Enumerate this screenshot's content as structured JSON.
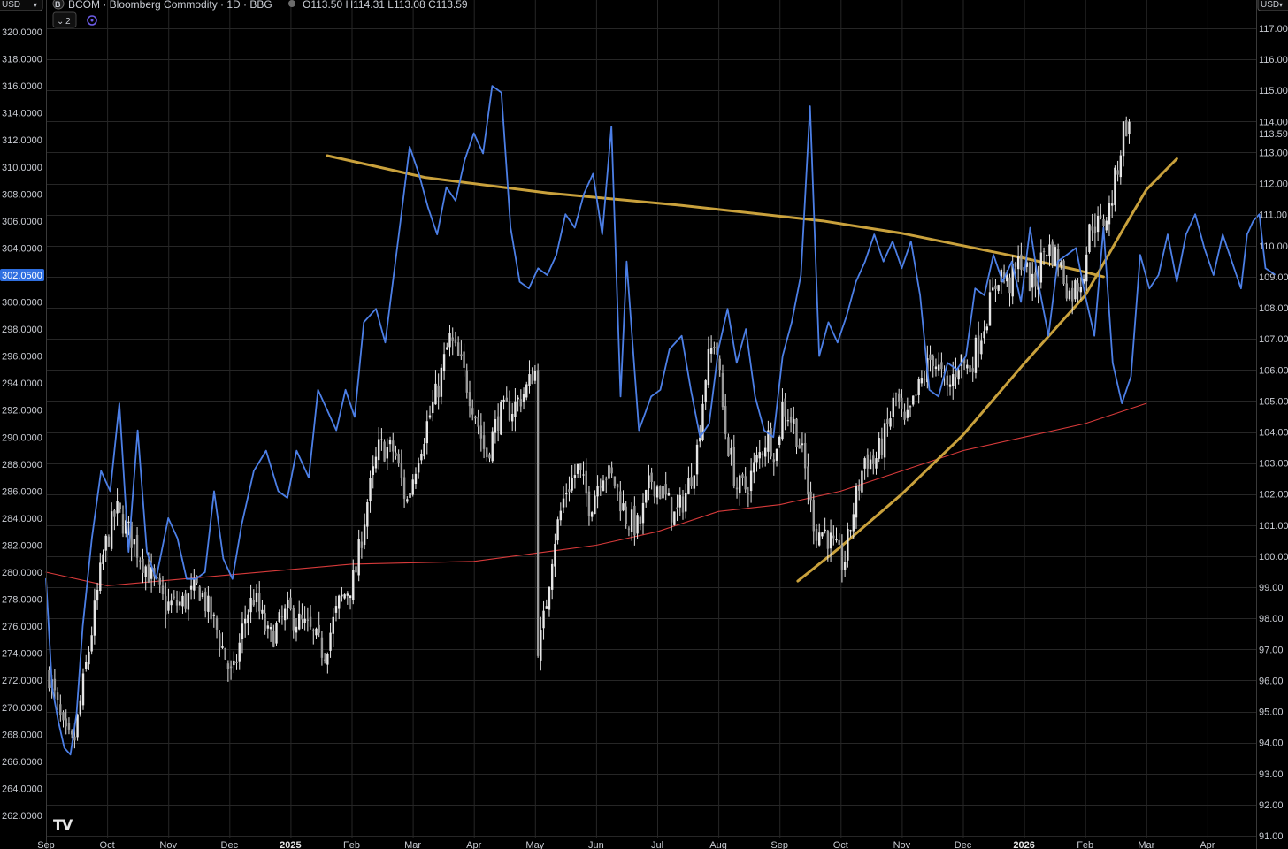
{
  "header": {
    "currency_left": "USD",
    "currency_right": "USD",
    "symbol_badge": "B",
    "title": "BCOM · Bloomberg Commodity · 1D · BBG",
    "ohlc": "O113.50  H114.31  L113.08  C113.59",
    "indicator_count": "2"
  },
  "logo": "TV",
  "colors": {
    "background": "#000000",
    "grid": "#262626",
    "candle": "#e6e6e6",
    "blue_line": "#4c7fe6",
    "red_ma": "#d63a3a",
    "gold_trend": "#c9a13c",
    "left_highlight": "#2f6fe0"
  },
  "chart_data": {
    "type": "line",
    "x_axis": {
      "labels": [
        "Sep",
        "Oct",
        "Nov",
        "Dec",
        "2025",
        "Feb",
        "Mar",
        "Apr",
        "May",
        "Jun",
        "Jul",
        "Aug",
        "Sep",
        "Oct",
        "Nov",
        "Dec",
        "2026",
        "Feb",
        "Mar",
        "Apr"
      ]
    },
    "left_axis": {
      "range": [
        261,
        321
      ],
      "ticks": [
        "320.0000",
        "318.0000",
        "316.0000",
        "314.0000",
        "312.0000",
        "310.0000",
        "308.0000",
        "306.0000",
        "304.0000",
        "302.0000",
        "300.0000",
        "298.0000",
        "296.0000",
        "294.0000",
        "292.0000",
        "290.0000",
        "288.0000",
        "286.0000",
        "284.0000",
        "282.0000",
        "280.0000",
        "278.0000",
        "276.0000",
        "274.0000",
        "272.0000",
        "270.0000",
        "268.0000",
        "266.0000",
        "264.0000",
        "262.0000"
      ],
      "current_value": "302.0500"
    },
    "right_axis": {
      "range": [
        91,
        117.5
      ],
      "ticks": [
        "117.00",
        "116.00",
        "115.00",
        "114.00",
        "113.00",
        "112.00",
        "111.00",
        "110.00",
        "109.00",
        "108.00",
        "107.00",
        "106.00",
        "105.00",
        "104.00",
        "103.00",
        "102.00",
        "101.00",
        "100.00",
        "99.00",
        "98.00",
        "97.00",
        "96.00",
        "95.00",
        "94.00",
        "93.00",
        "92.00",
        "91.00"
      ],
      "last_price": "113.59"
    },
    "series": [
      {
        "kind": "candles",
        "axis": "right",
        "close_path_t_v": [
          [
            0.05,
            96.2
          ],
          [
            0.3,
            94.2
          ],
          [
            0.45,
            93.9
          ],
          [
            0.7,
            97.0
          ],
          [
            0.95,
            100.2
          ],
          [
            1.15,
            101.5
          ],
          [
            1.4,
            100.6
          ],
          [
            1.65,
            99.6
          ],
          [
            1.95,
            98.4
          ],
          [
            2.25,
            98.5
          ],
          [
            2.5,
            99.0
          ],
          [
            2.8,
            97.6
          ],
          [
            3.05,
            96.0
          ],
          [
            3.25,
            98.0
          ],
          [
            3.4,
            98.7
          ],
          [
            3.65,
            97.3
          ],
          [
            3.95,
            98.2
          ],
          [
            4.3,
            97.6
          ],
          [
            4.55,
            96.9
          ],
          [
            4.8,
            98.5
          ],
          [
            5.05,
            99.3
          ],
          [
            5.25,
            101.7
          ],
          [
            5.45,
            103.5
          ],
          [
            5.7,
            103.4
          ],
          [
            5.9,
            101.7
          ],
          [
            6.1,
            103.4
          ],
          [
            6.4,
            105.3
          ],
          [
            6.6,
            107.0
          ],
          [
            6.8,
            106.1
          ],
          [
            7.0,
            104.8
          ],
          [
            7.2,
            103.2
          ],
          [
            7.4,
            104.5
          ],
          [
            7.65,
            104.8
          ],
          [
            7.9,
            105.5
          ],
          [
            8.0,
            106.2
          ],
          [
            8.05,
            96.8
          ],
          [
            8.15,
            98.0
          ],
          [
            8.3,
            100.4
          ],
          [
            8.5,
            102.1
          ],
          [
            8.7,
            102.8
          ],
          [
            8.9,
            101.6
          ],
          [
            9.1,
            102.8
          ],
          [
            9.3,
            102.4
          ],
          [
            9.5,
            101.2
          ],
          [
            9.7,
            100.9
          ],
          [
            9.9,
            102.5
          ],
          [
            10.1,
            102.0
          ],
          [
            10.3,
            101.2
          ],
          [
            10.5,
            102.2
          ],
          [
            10.65,
            103.4
          ],
          [
            10.8,
            106.0
          ],
          [
            10.95,
            107.1
          ],
          [
            11.1,
            104.2
          ],
          [
            11.3,
            102.2
          ],
          [
            11.45,
            102.2
          ],
          [
            11.6,
            102.9
          ],
          [
            11.8,
            103.9
          ],
          [
            11.95,
            103.3
          ],
          [
            12.05,
            104.9
          ],
          [
            12.25,
            104.2
          ],
          [
            12.4,
            103.0
          ],
          [
            12.5,
            101.7
          ],
          [
            12.6,
            100.8
          ],
          [
            12.75,
            100.8
          ],
          [
            12.9,
            100.2
          ],
          [
            13.05,
            99.7
          ],
          [
            13.2,
            101.4
          ],
          [
            13.4,
            103.2
          ],
          [
            13.55,
            103.0
          ],
          [
            13.75,
            104.0
          ],
          [
            13.9,
            105.2
          ],
          [
            14.05,
            104.1
          ],
          [
            14.3,
            105.5
          ],
          [
            14.5,
            106.5
          ],
          [
            14.6,
            106.0
          ],
          [
            14.75,
            105.3
          ],
          [
            14.95,
            106.4
          ],
          [
            15.1,
            106.0
          ],
          [
            15.3,
            107.2
          ],
          [
            15.5,
            108.5
          ],
          [
            15.6,
            109.2
          ],
          [
            15.75,
            108.7
          ],
          [
            15.95,
            109.6
          ],
          [
            16.15,
            108.6
          ],
          [
            16.35,
            110.0
          ],
          [
            16.55,
            109.6
          ],
          [
            16.75,
            108.4
          ],
          [
            16.95,
            109.0
          ],
          [
            17.1,
            110.8
          ],
          [
            17.25,
            110.6
          ],
          [
            17.4,
            111.2
          ],
          [
            17.5,
            112.2
          ],
          [
            17.65,
            114.0
          ],
          [
            17.75,
            113.59
          ]
        ]
      },
      {
        "kind": "line",
        "axis": "left",
        "color": "blue",
        "points_t_v": [
          [
            0.0,
            279.5
          ],
          [
            0.1,
            271.5
          ],
          [
            0.2,
            269.0
          ],
          [
            0.3,
            267.0
          ],
          [
            0.4,
            266.5
          ],
          [
            0.5,
            269.5
          ],
          [
            0.6,
            276.0
          ],
          [
            0.75,
            282.5
          ],
          [
            0.9,
            287.5
          ],
          [
            1.05,
            286.0
          ],
          [
            1.2,
            292.5
          ],
          [
            1.35,
            281.5
          ],
          [
            1.5,
            290.5
          ],
          [
            1.65,
            281.5
          ],
          [
            1.8,
            279.5
          ],
          [
            2.0,
            284.0
          ],
          [
            2.15,
            282.5
          ],
          [
            2.3,
            279.5
          ],
          [
            2.45,
            279.5
          ],
          [
            2.6,
            280.0
          ],
          [
            2.75,
            286.0
          ],
          [
            2.9,
            281.0
          ],
          [
            3.05,
            279.5
          ],
          [
            3.2,
            283.5
          ],
          [
            3.4,
            287.5
          ],
          [
            3.6,
            289.0
          ],
          [
            3.8,
            286.0
          ],
          [
            3.95,
            285.5
          ],
          [
            4.1,
            289.0
          ],
          [
            4.3,
            287.0
          ],
          [
            4.45,
            293.5
          ],
          [
            4.6,
            292.0
          ],
          [
            4.75,
            290.5
          ],
          [
            4.9,
            293.5
          ],
          [
            5.05,
            291.5
          ],
          [
            5.2,
            298.5
          ],
          [
            5.4,
            299.5
          ],
          [
            5.55,
            297.0
          ],
          [
            5.8,
            306.0
          ],
          [
            5.95,
            311.5
          ],
          [
            6.1,
            309.5
          ],
          [
            6.25,
            307.0
          ],
          [
            6.4,
            305.0
          ],
          [
            6.55,
            308.5
          ],
          [
            6.7,
            307.5
          ],
          [
            6.85,
            310.5
          ],
          [
            7.0,
            312.5
          ],
          [
            7.15,
            311.0
          ],
          [
            7.3,
            316.0
          ],
          [
            7.45,
            315.5
          ],
          [
            7.6,
            305.5
          ],
          [
            7.75,
            301.5
          ],
          [
            7.9,
            301.0
          ],
          [
            8.05,
            302.5
          ],
          [
            8.2,
            302.0
          ],
          [
            8.35,
            303.5
          ],
          [
            8.5,
            306.5
          ],
          [
            8.65,
            305.5
          ],
          [
            8.8,
            308.0
          ],
          [
            8.95,
            309.5
          ],
          [
            9.1,
            305.0
          ],
          [
            9.25,
            313.0
          ],
          [
            9.4,
            293.0
          ],
          [
            9.5,
            303.0
          ],
          [
            9.7,
            290.5
          ],
          [
            9.9,
            293.0
          ],
          [
            10.05,
            293.5
          ],
          [
            10.2,
            296.5
          ],
          [
            10.4,
            297.5
          ],
          [
            10.55,
            293.5
          ],
          [
            10.7,
            290.0
          ],
          [
            10.85,
            291.0
          ],
          [
            11.0,
            296.5
          ],
          [
            11.15,
            299.5
          ],
          [
            11.3,
            295.5
          ],
          [
            11.45,
            298.0
          ],
          [
            11.6,
            293.0
          ],
          [
            11.75,
            290.5
          ],
          [
            11.9,
            290.0
          ],
          [
            12.05,
            296.0
          ],
          [
            12.2,
            298.5
          ],
          [
            12.35,
            302.0
          ],
          [
            12.5,
            314.5
          ],
          [
            12.65,
            296.0
          ],
          [
            12.8,
            298.5
          ],
          [
            12.95,
            297.0
          ],
          [
            13.1,
            299.0
          ],
          [
            13.25,
            301.5
          ],
          [
            13.4,
            303.0
          ],
          [
            13.55,
            305.0
          ],
          [
            13.7,
            303.0
          ],
          [
            13.85,
            304.5
          ],
          [
            14.0,
            302.5
          ],
          [
            14.15,
            304.5
          ],
          [
            14.3,
            300.5
          ],
          [
            14.45,
            293.5
          ],
          [
            14.6,
            293.0
          ],
          [
            14.75,
            295.5
          ],
          [
            14.9,
            295.0
          ],
          [
            15.05,
            296.0
          ],
          [
            15.2,
            301.0
          ],
          [
            15.35,
            300.5
          ],
          [
            15.5,
            303.5
          ],
          [
            15.65,
            301.5
          ],
          [
            15.8,
            303.0
          ],
          [
            15.95,
            300.0
          ],
          [
            16.1,
            305.5
          ],
          [
            16.25,
            301.0
          ],
          [
            16.4,
            297.5
          ],
          [
            16.55,
            303.0
          ],
          [
            16.7,
            303.5
          ],
          [
            16.85,
            304.0
          ],
          [
            17.0,
            300.5
          ],
          [
            17.15,
            297.5
          ],
          [
            17.3,
            305.5
          ],
          [
            17.45,
            295.5
          ],
          [
            17.6,
            292.5
          ],
          [
            17.75,
            294.5
          ],
          [
            17.9,
            303.5
          ],
          [
            18.05,
            301.0
          ],
          [
            18.2,
            302.0
          ],
          [
            18.35,
            305.0
          ],
          [
            18.5,
            301.5
          ],
          [
            18.65,
            305.0
          ],
          [
            18.8,
            306.5
          ],
          [
            18.95,
            304.0
          ],
          [
            19.1,
            302.0
          ],
          [
            19.25,
            305.0
          ],
          [
            19.4,
            303.0
          ],
          [
            19.55,
            301.0
          ],
          [
            19.65,
            305.0
          ],
          [
            19.75,
            306.0
          ],
          [
            19.85,
            306.5
          ],
          [
            19.95,
            302.5
          ],
          [
            20.1,
            302.05
          ]
        ]
      },
      {
        "kind": "line",
        "axis": "left",
        "color": "red",
        "points_t_v": [
          [
            0.0,
            280.0
          ],
          [
            1.0,
            279.0
          ],
          [
            3.0,
            279.8
          ],
          [
            5.0,
            280.6
          ],
          [
            7.0,
            280.8
          ],
          [
            9.0,
            282.0
          ],
          [
            10.0,
            283.0
          ],
          [
            11.0,
            284.5
          ],
          [
            12.0,
            285.0
          ],
          [
            13.0,
            286.0
          ],
          [
            14.0,
            287.5
          ],
          [
            15.0,
            289.0
          ],
          [
            16.0,
            290.0
          ],
          [
            17.0,
            291.0
          ],
          [
            18.0,
            292.5
          ]
        ]
      },
      {
        "kind": "trendline",
        "axis": "right",
        "color": "gold",
        "points_t_v": [
          [
            4.6,
            112.9
          ],
          [
            6.2,
            112.2
          ],
          [
            8.2,
            111.7
          ],
          [
            10.4,
            111.3
          ],
          [
            12.7,
            110.8
          ],
          [
            14.0,
            110.4
          ],
          [
            15.0,
            110.0
          ],
          [
            16.0,
            109.6
          ],
          [
            16.9,
            109.2
          ],
          [
            17.3,
            109.0
          ]
        ]
      },
      {
        "kind": "trendline",
        "axis": "right",
        "color": "gold",
        "points_t_v": [
          [
            12.3,
            99.2
          ],
          [
            13.0,
            100.3
          ],
          [
            14.0,
            102.0
          ],
          [
            15.0,
            103.9
          ],
          [
            16.0,
            106.2
          ],
          [
            17.0,
            108.4
          ],
          [
            17.7,
            110.8
          ],
          [
            18.0,
            111.8
          ],
          [
            18.5,
            112.8
          ]
        ]
      }
    ]
  }
}
